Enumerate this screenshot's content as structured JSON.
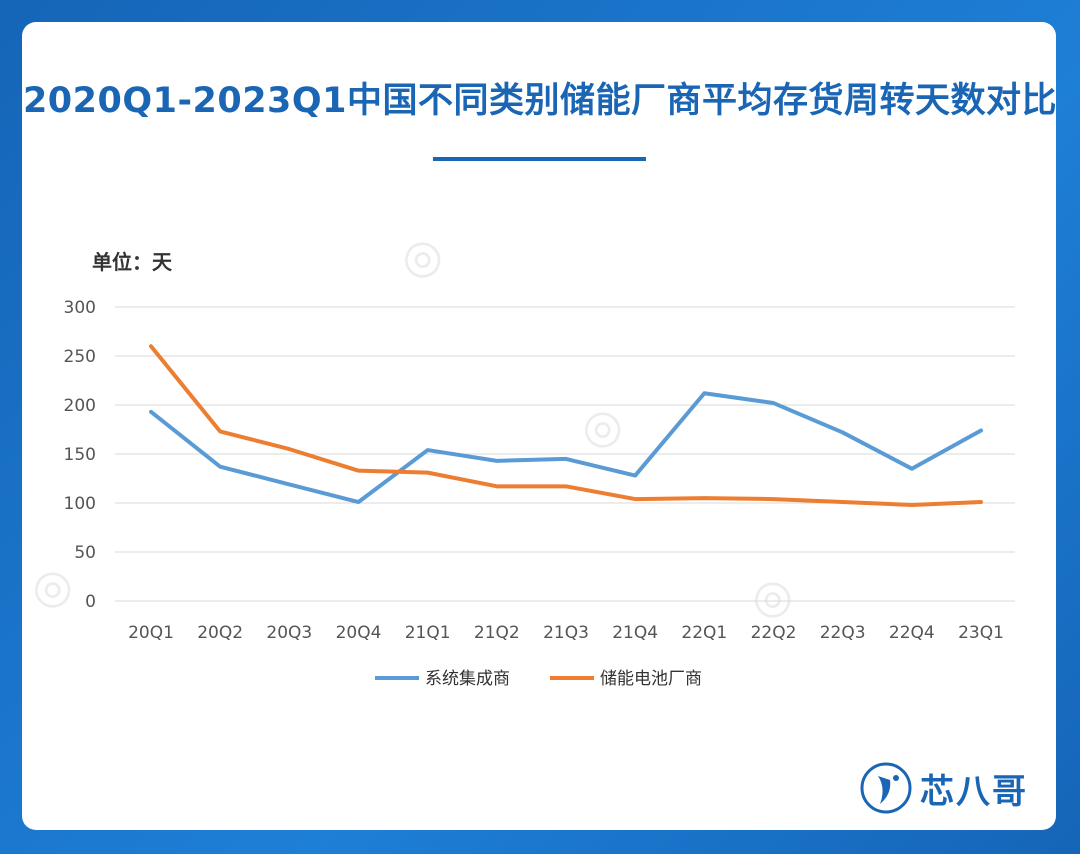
{
  "title": "2020Q1-2023Q1中国不同类别储能厂商平均存货周转天数对比",
  "unit_label": "单位：天",
  "logo_text": "芯八哥",
  "colors": {
    "series1": "#5b9bd5",
    "series2": "#ed7d31",
    "title": "#1a66b4",
    "background": "#1e7fd6"
  },
  "chart_data": {
    "type": "line",
    "title": "2020Q1-2023Q1中国不同类别储能厂商平均存货周转天数对比",
    "ylabel": "单位：天",
    "categories": [
      "20Q1",
      "20Q2",
      "20Q3",
      "20Q4",
      "21Q1",
      "21Q2",
      "21Q3",
      "21Q4",
      "22Q1",
      "22Q2",
      "22Q3",
      "22Q4",
      "23Q1"
    ],
    "ylim": [
      0,
      300
    ],
    "yticks": [
      0,
      50,
      100,
      150,
      200,
      250,
      300
    ],
    "grid": true,
    "legend": "bottom",
    "series": [
      {
        "name": "系统集成商",
        "color": "#5b9bd5",
        "values": [
          193,
          137,
          119,
          101,
          154,
          143,
          145,
          128,
          212,
          202,
          172,
          135,
          174
        ]
      },
      {
        "name": "储能电池厂商",
        "color": "#ed7d31",
        "values": [
          260,
          173,
          155,
          133,
          131,
          117,
          117,
          104,
          105,
          104,
          101,
          98,
          101
        ]
      }
    ]
  }
}
